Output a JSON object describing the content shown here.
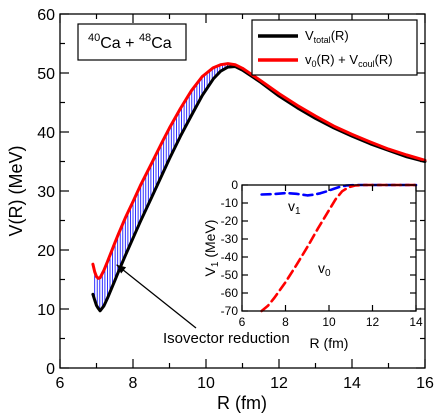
{
  "chart_data": [
    {
      "type": "line",
      "title": "",
      "box_label": {
        "a1": "40",
        "e1": "Ca + ",
        "a2": "48",
        "e2": "Ca"
      },
      "xlabel": "R (fm)",
      "ylabel": "V(R) (MeV)",
      "xlim": [
        6,
        16
      ],
      "ylim": [
        0,
        60
      ],
      "xticks": [
        6,
        8,
        10,
        12,
        14,
        16
      ],
      "yticks": [
        0,
        10,
        20,
        30,
        40,
        50,
        60
      ],
      "grid": false,
      "legend_position": "top-right",
      "series": [
        {
          "name": "Vtotal(R)",
          "legend": {
            "main": "V",
            "sub": "total",
            "rest": "(R)"
          },
          "color": "#000000",
          "x": [
            6.9,
            6.95,
            7.0,
            7.05,
            7.1,
            7.2,
            7.3,
            7.4,
            7.5,
            7.6,
            7.8,
            8.0,
            8.2,
            8.5,
            8.8,
            9.0,
            9.3,
            9.6,
            9.9,
            10.2,
            10.4,
            10.6,
            10.8,
            11.0,
            11.5,
            12.0,
            12.5,
            13.0,
            13.5,
            14.0,
            14.5,
            15.0,
            15.5,
            16.0
          ],
          "y": [
            12.5,
            11.5,
            10.6,
            10.1,
            9.7,
            10.5,
            11.8,
            13.3,
            14.8,
            16.3,
            19.2,
            22.0,
            24.8,
            28.8,
            32.8,
            35.5,
            39.3,
            42.8,
            46.2,
            49.0,
            50.3,
            51.0,
            51.1,
            50.5,
            48.4,
            46.1,
            44.1,
            42.3,
            40.7,
            39.3,
            38.0,
            36.9,
            35.8,
            35.0
          ]
        },
        {
          "name": "v0(R) + Vcoul(R)",
          "legend": {
            "v": "v",
            "sub0": "0",
            "mid": "(R) + V",
            "subc": "coul",
            "rest": "(R)"
          },
          "color": "#ff0000",
          "x": [
            6.9,
            6.95,
            7.0,
            7.05,
            7.1,
            7.2,
            7.3,
            7.4,
            7.5,
            7.6,
            7.8,
            8.0,
            8.2,
            8.5,
            8.8,
            9.0,
            9.3,
            9.6,
            9.9,
            10.2,
            10.4,
            10.6,
            10.8,
            11.0,
            11.5,
            12.0,
            12.5,
            13.0,
            13.5,
            14.0,
            14.5,
            15.0,
            15.5,
            16.0
          ],
          "y": [
            17.6,
            16.3,
            15.5,
            15.2,
            15.3,
            16.5,
            18.0,
            19.6,
            21.2,
            22.7,
            25.6,
            28.2,
            30.9,
            34.6,
            38.3,
            40.7,
            44.0,
            47.0,
            49.4,
            50.9,
            51.4,
            51.6,
            51.4,
            50.8,
            48.7,
            46.5,
            44.5,
            42.7,
            41.0,
            39.6,
            38.3,
            37.1,
            36.1,
            35.2
          ]
        }
      ],
      "annotation": {
        "text": "Isovector reduction",
        "arrow_to_x": 7.55,
        "arrow_to_y": 17.5
      }
    },
    {
      "type": "line",
      "title": "",
      "xlabel": "R (fm)",
      "ylabel": {
        "main": "V",
        "sub": "1",
        "rest": " (MeV)"
      },
      "xlim": [
        6,
        14
      ],
      "ylim": [
        -70,
        0
      ],
      "xticks": [
        6,
        8,
        10,
        12,
        14
      ],
      "yticks": [
        0,
        -10,
        -20,
        -30,
        -40,
        -50,
        -60,
        -70
      ],
      "grid": false,
      "series": [
        {
          "name": "v1",
          "label": {
            "main": "v",
            "sub": "1"
          },
          "color": "#0000ff",
          "dash": "dashed",
          "x": [
            6.9,
            7.5,
            8.0,
            8.5,
            9.0,
            9.3,
            9.6,
            9.9,
            10.2,
            10.5,
            10.8,
            11.2,
            11.6,
            12.0,
            13.0,
            14.0
          ],
          "y": [
            -5.3,
            -5.0,
            -4.5,
            -4.9,
            -5.8,
            -5.4,
            -4.6,
            -3.5,
            -2.2,
            -1.0,
            -0.3,
            0.0,
            0.0,
            0.0,
            0.0,
            0.0
          ]
        },
        {
          "name": "v0",
          "label": {
            "main": "v",
            "sub": "0"
          },
          "color": "#ff0000",
          "dash": "dashed",
          "x": [
            6.9,
            7.2,
            7.5,
            8.0,
            8.5,
            9.0,
            9.5,
            10.0,
            10.3,
            10.6,
            10.9,
            11.2,
            11.6,
            12.0,
            13.0,
            14.0
          ],
          "y": [
            -70.0,
            -67.0,
            -62.5,
            -54.0,
            -44.5,
            -34.5,
            -24.0,
            -14.0,
            -8.0,
            -3.5,
            -1.2,
            -0.3,
            0.0,
            0.0,
            0.0,
            0.0
          ]
        }
      ]
    }
  ]
}
